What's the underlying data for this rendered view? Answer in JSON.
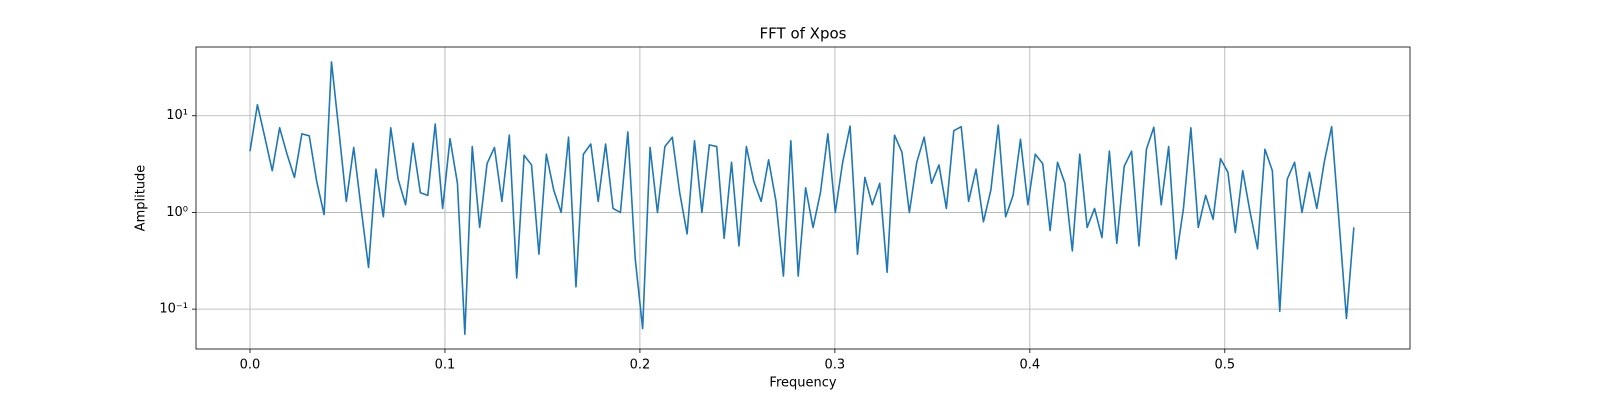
{
  "chart_data": {
    "type": "line",
    "title": "FFT of Xpos",
    "xlabel": "Frequency",
    "ylabel": "Amplitude",
    "color": "#1f77b4",
    "yscale": "log",
    "grid": true,
    "xlim": [
      -0.0277,
      0.595
    ],
    "ylim": [
      0.0387,
      51.4
    ],
    "xticks": [
      {
        "value": 0,
        "label": "0.0"
      },
      0.1,
      0.2,
      0.3,
      0.4,
      0.5
    ],
    "yticks": [
      {
        "value": 0.1,
        "label": "10⁻¹"
      },
      {
        "value": 1,
        "label": "10⁰"
      },
      {
        "value": 10,
        "label": "10¹"
      }
    ],
    "x": [
      0,
      0.0038,
      0.0076,
      0.0114,
      0.0152,
      0.019,
      0.0228,
      0.0266,
      0.0304,
      0.0342,
      0.038,
      0.0418,
      0.0456,
      0.0494,
      0.0532,
      0.057,
      0.0608,
      0.0646,
      0.0684,
      0.0722,
      0.076,
      0.0798,
      0.0836,
      0.0874,
      0.0912,
      0.095,
      0.0988,
      0.1026,
      0.1064,
      0.1102,
      0.114,
      0.1178,
      0.1216,
      0.1254,
      0.1292,
      0.133,
      0.1368,
      0.1406,
      0.1444,
      0.1482,
      0.152,
      0.1558,
      0.1596,
      0.1634,
      0.1672,
      0.171,
      0.1748,
      0.1786,
      0.1824,
      0.1862,
      0.19,
      0.1938,
      0.1976,
      0.2014,
      0.2052,
      0.209,
      0.2128,
      0.2166,
      0.2204,
      0.2242,
      0.228,
      0.2318,
      0.2356,
      0.2394,
      0.2432,
      0.247,
      0.2508,
      0.2546,
      0.2584,
      0.2622,
      0.266,
      0.2698,
      0.2736,
      0.2774,
      0.2812,
      0.285,
      0.2888,
      0.2926,
      0.2964,
      0.3002,
      0.304,
      0.3078,
      0.3116,
      0.3154,
      0.3192,
      0.323,
      0.3268,
      0.3306,
      0.3344,
      0.3382,
      0.342,
      0.3458,
      0.3496,
      0.3534,
      0.3572,
      0.361,
      0.3648,
      0.3686,
      0.3724,
      0.3762,
      0.38,
      0.3838,
      0.3876,
      0.3914,
      0.3952,
      0.399,
      0.4028,
      0.4066,
      0.4104,
      0.4142,
      0.418,
      0.4218,
      0.4256,
      0.4294,
      0.4332,
      0.437,
      0.4408,
      0.4446,
      0.4484,
      0.4522,
      0.456,
      0.4598,
      0.4636,
      0.4674,
      0.4712,
      0.475,
      0.4788,
      0.4826,
      0.4864,
      0.4902,
      0.494,
      0.4978,
      0.5016,
      0.5054,
      0.5092,
      0.513,
      0.5168,
      0.5206,
      0.5244,
      0.5282,
      0.532,
      0.5358,
      0.5396,
      0.5434,
      0.5472,
      0.551,
      0.5548,
      0.5586,
      0.5624,
      0.5662
    ],
    "values": [
      4.3,
      13,
      6,
      2.7,
      7.5,
      4,
      2.3,
      6.5,
      6.2,
      2.1,
      0.95,
      36,
      7,
      1.3,
      4.7,
      1.1,
      0.27,
      2.8,
      0.9,
      7.5,
      2.2,
      1.2,
      5.2,
      1.6,
      1.5,
      8.2,
      1.1,
      5.8,
      2.0,
      0.055,
      4.8,
      0.7,
      3.2,
      4.7,
      1.3,
      6.3,
      0.21,
      3.9,
      3.1,
      0.37,
      4.0,
      1.7,
      1.0,
      6.0,
      0.17,
      4.0,
      5.1,
      1.3,
      5.1,
      1.1,
      1.0,
      6.8,
      0.33,
      0.063,
      4.7,
      1.0,
      4.8,
      6.0,
      1.6,
      0.6,
      5.5,
      1.0,
      5.0,
      4.8,
      0.54,
      3.3,
      0.45,
      4.8,
      2.1,
      1.3,
      3.5,
      1.3,
      0.22,
      5.5,
      0.22,
      1.8,
      0.7,
      1.6,
      6.5,
      1.0,
      3.3,
      7.8,
      0.37,
      2.3,
      1.2,
      2.0,
      0.24,
      6.3,
      4.2,
      1.0,
      3.3,
      6.0,
      2.0,
      3.1,
      1.1,
      7.0,
      7.7,
      1.3,
      2.8,
      0.8,
      1.7,
      8.0,
      0.9,
      1.5,
      5.7,
      1.2,
      4.0,
      3.2,
      0.65,
      3.3,
      2.0,
      0.4,
      4.0,
      0.7,
      1.1,
      0.55,
      4.3,
      0.48,
      3.0,
      4.3,
      0.45,
      4.5,
      7.6,
      1.2,
      4.8,
      0.33,
      1.1,
      7.5,
      0.7,
      1.5,
      0.85,
      3.6,
      2.6,
      0.62,
      2.7,
      1.0,
      0.42,
      4.5,
      2.7,
      0.095,
      2.2,
      3.3,
      1.0,
      2.6,
      1.1,
      3.3,
      7.7,
      0.8,
      0.08,
      0.7
    ]
  }
}
